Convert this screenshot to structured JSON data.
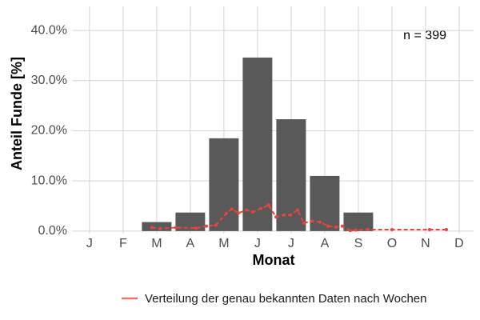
{
  "chart_data": {
    "type": "bar",
    "categories": [
      "J",
      "F",
      "M",
      "A",
      "M",
      "J",
      "J",
      "A",
      "S",
      "O",
      "N",
      "D"
    ],
    "values": [
      null,
      null,
      1.8,
      3.7,
      18.5,
      34.6,
      22.3,
      11.0,
      3.7,
      null,
      null,
      null
    ],
    "color": "#595959",
    "ylim": [
      -0.5,
      44.8
    ],
    "yticks": [
      {
        "value": 0,
        "label": "0.0%"
      },
      {
        "value": 10,
        "label": "10.0%"
      },
      {
        "value": 20,
        "label": "20.0%"
      },
      {
        "value": 30,
        "label": "30.0%"
      },
      {
        "value": 40,
        "label": "40.0%"
      }
    ],
    "xlim": [
      0.48,
      12.43
    ],
    "x_label": "Monat",
    "y_label": "Anteil Funde [%]",
    "annotation": "n = 399",
    "grid": true,
    "line": {
      "name": "Verteilung der genau bekannten Daten nach Wochen",
      "color": "#e8453c",
      "x": [
        2.86,
        3.1,
        3.57,
        4.17,
        4.48,
        4.76,
        5.07,
        5.24,
        5.43,
        5.67,
        5.86,
        6.1,
        6.33,
        6.55,
        6.79,
        6.98,
        7.19,
        7.38,
        7.62,
        7.86,
        8.1,
        8.33,
        8.52,
        8.76,
        8.93,
        9.29,
        10.0,
        11.12,
        11.62
      ],
      "values": [
        0.7,
        0.5,
        0.7,
        0.6,
        1.0,
        1.2,
        3.5,
        4.4,
        3.6,
        4.2,
        3.8,
        4.5,
        5.2,
        2.8,
        3.2,
        3.2,
        4.2,
        1.6,
        2.0,
        1.8,
        1.0,
        0.8,
        1.0,
        0.1,
        0.2,
        0.3,
        0.3,
        0.3,
        0.3
      ]
    }
  }
}
